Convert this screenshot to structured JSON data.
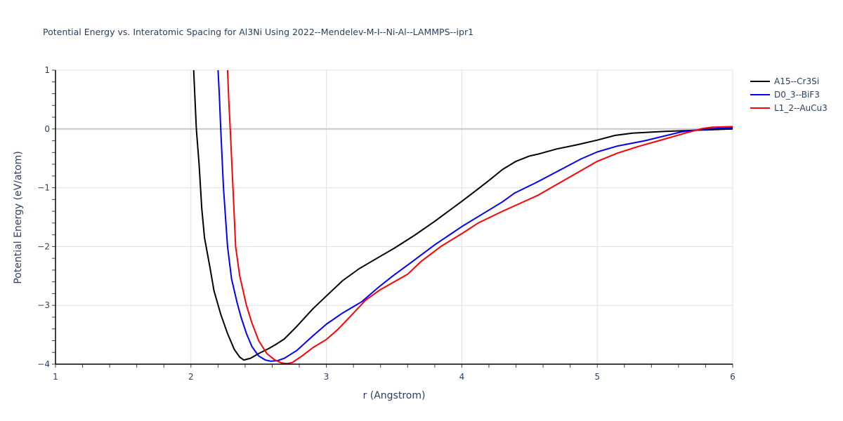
{
  "chart_data": {
    "type": "line",
    "title": "Potential Energy vs. Interatomic Spacing for Al3Ni Using 2022--Mendelev-M-I--Ni-Al--LAMMPS--ipr1",
    "xlabel": "r (Angstrom)",
    "ylabel": "Potential Energy (eV/atom)",
    "xlim": [
      1,
      6
    ],
    "ylim": [
      -4,
      1
    ],
    "x_ticks": [
      "1",
      "2",
      "3",
      "4",
      "5",
      "6"
    ],
    "y_ticks": [
      "1",
      "0",
      "−1",
      "−2",
      "−3",
      "−4"
    ],
    "grid": true,
    "legend_position": "right",
    "series": [
      {
        "name": "A15--Cr3Si",
        "color": "#000000",
        "x": [
          2.02,
          2.04,
          2.06,
          2.08,
          2.1,
          2.14,
          2.17,
          2.22,
          2.27,
          2.32,
          2.36,
          2.39,
          2.44,
          2.5,
          2.57,
          2.63,
          2.69,
          2.78,
          2.9,
          3.0,
          3.12,
          3.24,
          3.35,
          3.5,
          3.65,
          3.8,
          4.0,
          4.12,
          4.22,
          4.3,
          4.4,
          4.5,
          4.56,
          4.7,
          4.85,
          5.0,
          5.13,
          5.26,
          5.5,
          5.75,
          6.0
        ],
        "y": [
          1.0,
          0.0,
          -0.6,
          -1.35,
          -1.85,
          -2.35,
          -2.75,
          -3.15,
          -3.48,
          -3.75,
          -3.88,
          -3.93,
          -3.9,
          -3.82,
          -3.74,
          -3.66,
          -3.57,
          -3.36,
          -3.06,
          -2.84,
          -2.58,
          -2.38,
          -2.23,
          -2.03,
          -1.81,
          -1.57,
          -1.23,
          -1.02,
          -0.84,
          -0.69,
          -0.55,
          -0.46,
          -0.43,
          -0.34,
          -0.27,
          -0.19,
          -0.11,
          -0.07,
          -0.04,
          -0.02,
          0.0
        ]
      },
      {
        "name": "D0_3--BiF3",
        "color": "#0000ff",
        "x": [
          2.2,
          2.21,
          2.22,
          2.24,
          2.27,
          2.3,
          2.34,
          2.37,
          2.41,
          2.45,
          2.5,
          2.55,
          2.59,
          2.64,
          2.69,
          2.78,
          2.9,
          3.0,
          3.12,
          3.26,
          3.38,
          3.49,
          3.62,
          3.8,
          4.0,
          4.15,
          4.3,
          4.39,
          4.55,
          4.74,
          4.88,
          5.0,
          5.15,
          5.35,
          5.62,
          5.8,
          6.0
        ],
        "y": [
          1.0,
          0.55,
          0.0,
          -1.0,
          -2.0,
          -2.55,
          -2.95,
          -3.2,
          -3.48,
          -3.7,
          -3.86,
          -3.93,
          -3.95,
          -3.94,
          -3.9,
          -3.77,
          -3.52,
          -3.32,
          -3.13,
          -2.94,
          -2.7,
          -2.5,
          -2.28,
          -1.97,
          -1.66,
          -1.45,
          -1.24,
          -1.09,
          -0.91,
          -0.68,
          -0.51,
          -0.39,
          -0.29,
          -0.2,
          -0.05,
          0.0,
          0.02
        ]
      },
      {
        "name": "L1_2--AuCu3",
        "color": "#ff0000",
        "x": [
          2.27,
          2.28,
          2.29,
          2.31,
          2.33,
          2.36,
          2.41,
          2.45,
          2.5,
          2.56,
          2.62,
          2.67,
          2.71,
          2.75,
          2.82,
          2.9,
          3.0,
          3.08,
          3.18,
          3.29,
          3.4,
          3.5,
          3.6,
          3.7,
          3.85,
          4.0,
          4.12,
          4.3,
          4.56,
          4.75,
          5.0,
          5.15,
          5.3,
          5.5,
          5.65,
          5.78,
          5.85,
          6.0
        ],
        "y": [
          1.0,
          0.45,
          0.0,
          -1.0,
          -2.0,
          -2.5,
          -3.0,
          -3.3,
          -3.6,
          -3.82,
          -3.93,
          -3.98,
          -3.99,
          -3.97,
          -3.86,
          -3.72,
          -3.58,
          -3.42,
          -3.18,
          -2.91,
          -2.73,
          -2.6,
          -2.47,
          -2.25,
          -1.99,
          -1.78,
          -1.6,
          -1.4,
          -1.13,
          -0.88,
          -0.55,
          -0.41,
          -0.3,
          -0.17,
          -0.07,
          0.01,
          0.03,
          0.04
        ]
      }
    ]
  },
  "legend": {
    "items": [
      {
        "label": "A15--Cr3Si",
        "color": "#000000"
      },
      {
        "label": "D0_3--BiF3",
        "color": "#0000ff"
      },
      {
        "label": "L1_2--AuCu3",
        "color": "#ff0000"
      }
    ]
  }
}
